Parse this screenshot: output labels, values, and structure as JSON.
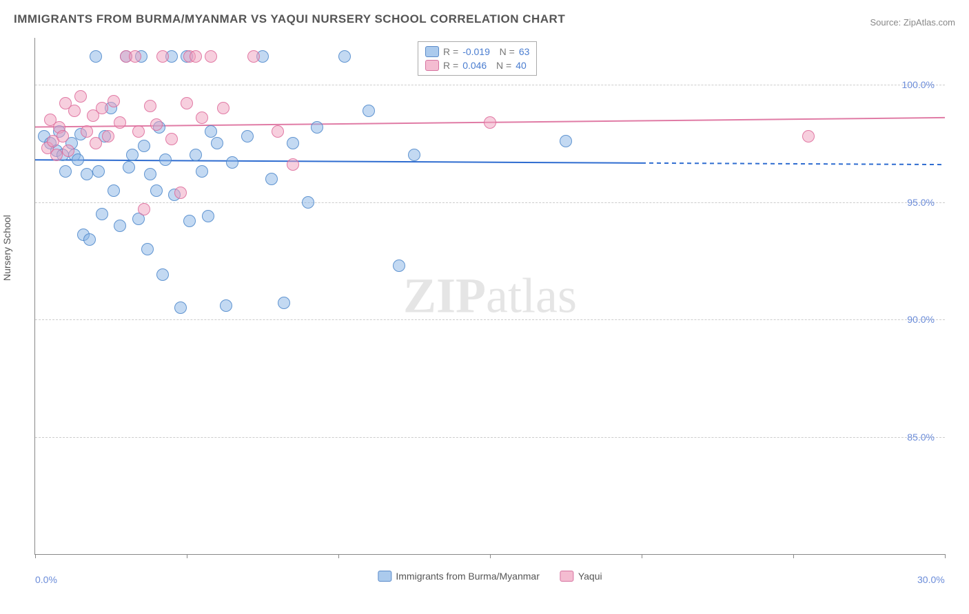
{
  "title": "IMMIGRANTS FROM BURMA/MYANMAR VS YAQUI NURSERY SCHOOL CORRELATION CHART",
  "source": "Source: ZipAtlas.com",
  "ylabel": "Nursery School",
  "watermark": "ZIPatlas",
  "chart": {
    "type": "scatter",
    "xlim": [
      0,
      30
    ],
    "ylim": [
      80,
      102
    ],
    "yticks": [
      {
        "value": 100,
        "label": "100.0%"
      },
      {
        "value": 95,
        "label": "95.0%"
      },
      {
        "value": 90,
        "label": "90.0%"
      },
      {
        "value": 85,
        "label": "85.0%"
      }
    ],
    "xticks": [
      {
        "value": 0,
        "label": "0.0%"
      },
      {
        "value": 5,
        "label": ""
      },
      {
        "value": 10,
        "label": ""
      },
      {
        "value": 15,
        "label": ""
      },
      {
        "value": 20,
        "label": ""
      },
      {
        "value": 25,
        "label": ""
      },
      {
        "value": 30,
        "label": "30.0%"
      }
    ],
    "grid_color": "#cccccc",
    "background_color": "#ffffff",
    "axis_color": "#888888",
    "series": [
      {
        "name": "Immigrants from Burma/Myanmar",
        "color_fill": "rgba(135,180,230,0.5)",
        "color_stroke": "#5a8ac9",
        "R": "-0.019",
        "N": "63",
        "trend": {
          "y_at_x0": 96.8,
          "y_at_x30": 96.6,
          "solid_until_x": 20,
          "color": "#2e6cd0"
        },
        "points": [
          [
            0.3,
            97.8
          ],
          [
            0.5,
            97.5
          ],
          [
            0.7,
            97.2
          ],
          [
            0.8,
            98.0
          ],
          [
            0.9,
            97.0
          ],
          [
            1.0,
            96.3
          ],
          [
            1.2,
            97.5
          ],
          [
            1.3,
            97.0
          ],
          [
            1.4,
            96.8
          ],
          [
            1.5,
            97.9
          ],
          [
            1.6,
            93.6
          ],
          [
            1.7,
            96.2
          ],
          [
            1.8,
            93.4
          ],
          [
            2.0,
            101.2
          ],
          [
            2.1,
            96.3
          ],
          [
            2.2,
            94.5
          ],
          [
            2.3,
            97.8
          ],
          [
            2.5,
            99.0
          ],
          [
            2.6,
            95.5
          ],
          [
            2.8,
            94.0
          ],
          [
            3.0,
            101.2
          ],
          [
            3.1,
            96.5
          ],
          [
            3.2,
            97.0
          ],
          [
            3.4,
            94.3
          ],
          [
            3.5,
            101.2
          ],
          [
            3.6,
            97.4
          ],
          [
            3.7,
            93.0
          ],
          [
            3.8,
            96.2
          ],
          [
            4.0,
            95.5
          ],
          [
            4.1,
            98.2
          ],
          [
            4.2,
            91.9
          ],
          [
            4.3,
            96.8
          ],
          [
            4.5,
            101.2
          ],
          [
            4.6,
            95.3
          ],
          [
            4.8,
            90.5
          ],
          [
            5.0,
            101.2
          ],
          [
            5.1,
            94.2
          ],
          [
            5.3,
            97.0
          ],
          [
            5.5,
            96.3
          ],
          [
            5.7,
            94.4
          ],
          [
            5.8,
            98.0
          ],
          [
            6.0,
            97.5
          ],
          [
            6.3,
            90.6
          ],
          [
            6.5,
            96.7
          ],
          [
            7.0,
            97.8
          ],
          [
            7.5,
            101.2
          ],
          [
            7.8,
            96.0
          ],
          [
            8.2,
            90.7
          ],
          [
            8.5,
            97.5
          ],
          [
            9.0,
            95.0
          ],
          [
            9.3,
            98.2
          ],
          [
            10.2,
            101.2
          ],
          [
            11.0,
            98.9
          ],
          [
            12.0,
            92.3
          ],
          [
            12.5,
            97.0
          ],
          [
            17.5,
            97.6
          ]
        ]
      },
      {
        "name": "Yaqui",
        "color_fill": "rgba(240,160,190,0.5)",
        "color_stroke": "#d673a0",
        "R": "0.046",
        "N": "40",
        "trend": {
          "y_at_x0": 98.2,
          "y_at_x30": 98.6,
          "solid_until_x": 30,
          "color": "#e07ba5"
        },
        "points": [
          [
            0.4,
            97.3
          ],
          [
            0.5,
            98.5
          ],
          [
            0.6,
            97.6
          ],
          [
            0.7,
            97.0
          ],
          [
            0.8,
            98.2
          ],
          [
            0.9,
            97.8
          ],
          [
            1.0,
            99.2
          ],
          [
            1.1,
            97.2
          ],
          [
            1.3,
            98.9
          ],
          [
            1.5,
            99.5
          ],
          [
            1.7,
            98.0
          ],
          [
            1.9,
            98.7
          ],
          [
            2.0,
            97.5
          ],
          [
            2.2,
            99.0
          ],
          [
            2.4,
            97.8
          ],
          [
            2.6,
            99.3
          ],
          [
            2.8,
            98.4
          ],
          [
            3.0,
            101.2
          ],
          [
            3.3,
            101.2
          ],
          [
            3.4,
            98.0
          ],
          [
            3.6,
            94.7
          ],
          [
            3.8,
            99.1
          ],
          [
            4.0,
            98.3
          ],
          [
            4.2,
            101.2
          ],
          [
            4.5,
            97.7
          ],
          [
            4.8,
            95.4
          ],
          [
            5.0,
            99.2
          ],
          [
            5.1,
            101.2
          ],
          [
            5.3,
            101.2
          ],
          [
            5.5,
            98.6
          ],
          [
            5.8,
            101.2
          ],
          [
            6.2,
            99.0
          ],
          [
            7.2,
            101.2
          ],
          [
            8.0,
            98.0
          ],
          [
            8.5,
            96.6
          ],
          [
            15.0,
            98.4
          ],
          [
            25.5,
            97.8
          ]
        ]
      }
    ]
  },
  "legend_bottom": {
    "items": [
      {
        "swatch": "blue",
        "label": "Immigrants from Burma/Myanmar"
      },
      {
        "swatch": "pink",
        "label": "Yaqui"
      }
    ]
  }
}
